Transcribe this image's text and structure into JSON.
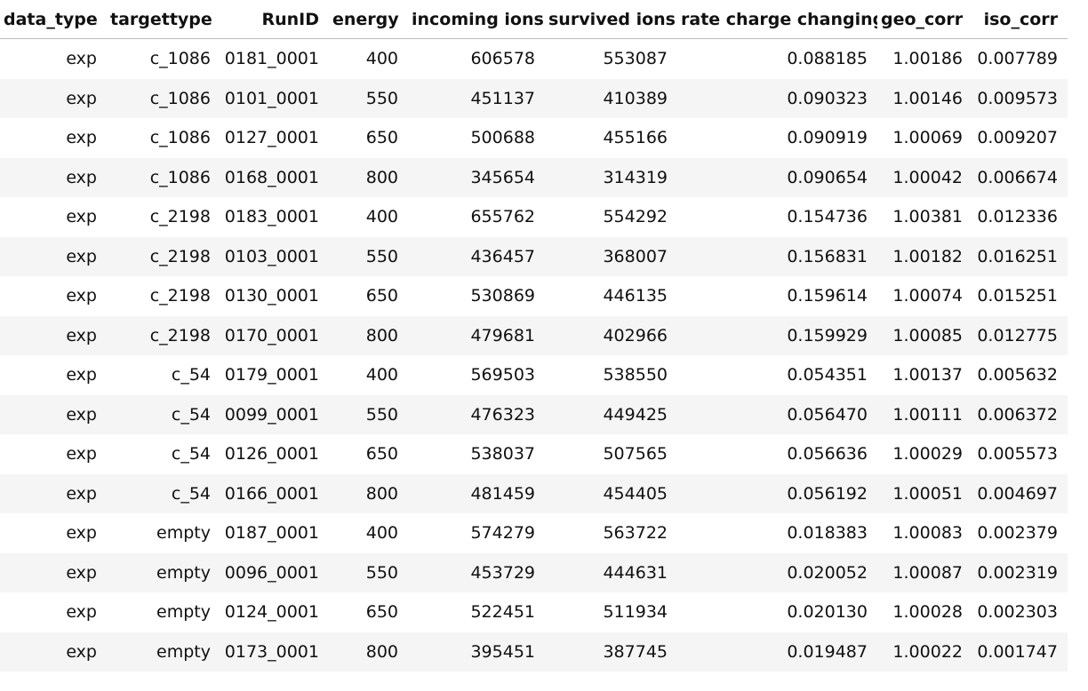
{
  "columns": [
    "data_type",
    "targettype",
    "RunID",
    "energy",
    "incoming ions",
    "survived ions",
    "rate charge changing",
    "geo_corr",
    "iso_corr"
  ],
  "rows": [
    [
      "exp",
      "c_1086",
      "0181_0001",
      "400",
      "606578",
      "553087",
      "0.088185",
      "1.00186",
      "0.007789"
    ],
    [
      "exp",
      "c_1086",
      "0101_0001",
      "550",
      "451137",
      "410389",
      "0.090323",
      "1.00146",
      "0.009573"
    ],
    [
      "exp",
      "c_1086",
      "0127_0001",
      "650",
      "500688",
      "455166",
      "0.090919",
      "1.00069",
      "0.009207"
    ],
    [
      "exp",
      "c_1086",
      "0168_0001",
      "800",
      "345654",
      "314319",
      "0.090654",
      "1.00042",
      "0.006674"
    ],
    [
      "exp",
      "c_2198",
      "0183_0001",
      "400",
      "655762",
      "554292",
      "0.154736",
      "1.00381",
      "0.012336"
    ],
    [
      "exp",
      "c_2198",
      "0103_0001",
      "550",
      "436457",
      "368007",
      "0.156831",
      "1.00182",
      "0.016251"
    ],
    [
      "exp",
      "c_2198",
      "0130_0001",
      "650",
      "530869",
      "446135",
      "0.159614",
      "1.00074",
      "0.015251"
    ],
    [
      "exp",
      "c_2198",
      "0170_0001",
      "800",
      "479681",
      "402966",
      "0.159929",
      "1.00085",
      "0.012775"
    ],
    [
      "exp",
      "c_54",
      "0179_0001",
      "400",
      "569503",
      "538550",
      "0.054351",
      "1.00137",
      "0.005632"
    ],
    [
      "exp",
      "c_54",
      "0099_0001",
      "550",
      "476323",
      "449425",
      "0.056470",
      "1.00111",
      "0.006372"
    ],
    [
      "exp",
      "c_54",
      "0126_0001",
      "650",
      "538037",
      "507565",
      "0.056636",
      "1.00029",
      "0.005573"
    ],
    [
      "exp",
      "c_54",
      "0166_0001",
      "800",
      "481459",
      "454405",
      "0.056192",
      "1.00051",
      "0.004697"
    ],
    [
      "exp",
      "empty",
      "0187_0001",
      "400",
      "574279",
      "563722",
      "0.018383",
      "1.00083",
      "0.002379"
    ],
    [
      "exp",
      "empty",
      "0096_0001",
      "550",
      "453729",
      "444631",
      "0.020052",
      "1.00087",
      "0.002319"
    ],
    [
      "exp",
      "empty",
      "0124_0001",
      "650",
      "522451",
      "511934",
      "0.020130",
      "1.00028",
      "0.002303"
    ],
    [
      "exp",
      "empty",
      "0173_0001",
      "800",
      "395451",
      "387745",
      "0.019487",
      "1.00022",
      "0.001747"
    ]
  ]
}
